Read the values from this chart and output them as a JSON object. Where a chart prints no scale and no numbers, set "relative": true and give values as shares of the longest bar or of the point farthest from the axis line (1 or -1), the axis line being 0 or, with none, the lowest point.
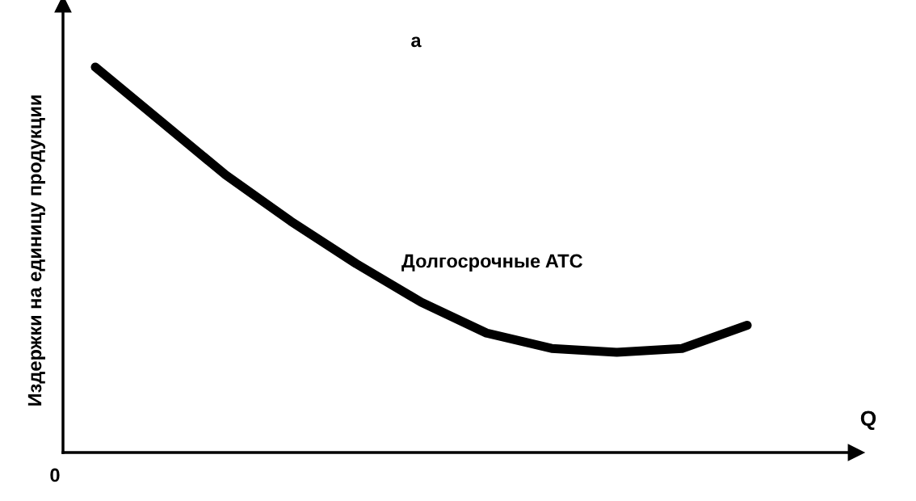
{
  "chart_data": {
    "type": "line",
    "relative": true,
    "title": "а",
    "xlabel": "Q",
    "ylabel": "Издержки на единицу продукции",
    "categories": [
      null,
      null,
      null,
      null,
      null,
      null,
      null,
      null,
      null,
      null,
      null
    ],
    "series": [
      {
        "color": "#000000",
        "values": [
          1,
          0.86,
          0.72,
          0.6,
          0.49,
          0.39,
          0.31,
          0.27,
          0.26,
          0.27,
          0.33
        ]
      }
    ],
    "annotations": [
      "Долгосрочные ATC",
      "0"
    ],
    "grid": false,
    "legend": false,
    "marker": "none",
    "line_style": "solid"
  }
}
